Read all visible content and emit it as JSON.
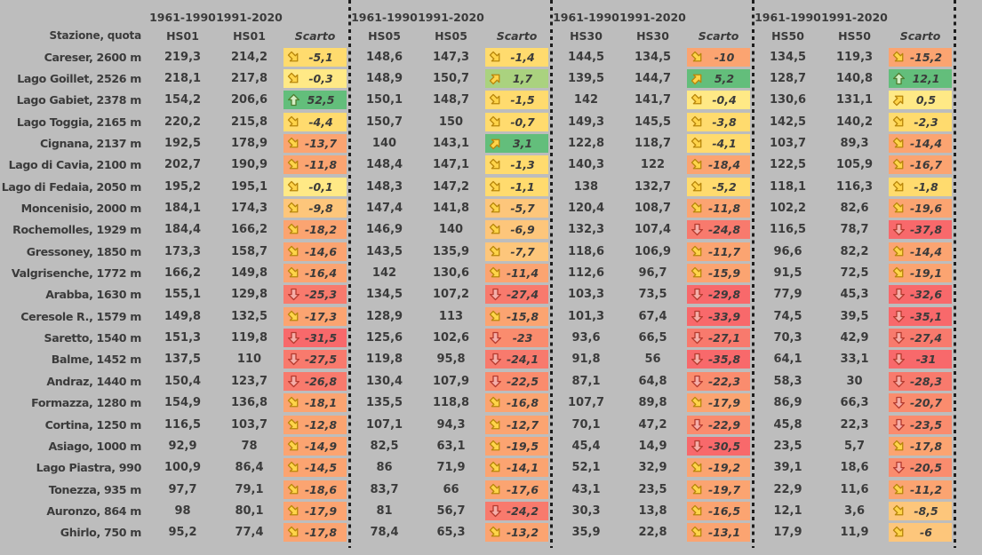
{
  "colors": {
    "page_background": "#BDBDBD",
    "text": "#3B3B3B",
    "separator": "#1D1D1D",
    "scarto_green_strong": "#63BE7B",
    "scarto_green_light": "#AAD27F",
    "scarto_yellow_light": "#FFE986",
    "scarto_yellow": "#FFDB6E",
    "scarto_yellow_orange": "#FDC67B",
    "scarto_orange": "#FBA471",
    "scarto_salmon": "#FA8C6E",
    "scarto_red_salmon": "#F87A6D",
    "scarto_red": "#F8696B",
    "arrow_yellow": "#FFD44A",
    "arrow_green": "#D6EEC5",
    "arrow_red": "#F5AEA8"
  },
  "scarto_rules": {
    "icons": [
      {
        "min": 10,
        "icon": "up-arrow",
        "style": "green"
      },
      {
        "min": 0,
        "icon": "diagonal-up-arrow",
        "style": "yellow"
      },
      {
        "min": -19.99,
        "icon": "diagonal-down-arrow",
        "style": "yellow"
      },
      {
        "min": -999,
        "icon": "down-arrow",
        "style": "red"
      }
    ],
    "fills": [
      {
        "min": 2.9,
        "color": "#63BE7B"
      },
      {
        "min": 0.9,
        "color": "#AAD27F"
      },
      {
        "min": -0.55,
        "color": "#FFE986"
      },
      {
        "min": -5.45,
        "color": "#FFDB6E"
      },
      {
        "min": -9.9,
        "color": "#FDC67B"
      },
      {
        "min": -20.05,
        "color": "#FBA471"
      },
      {
        "min": -24.05,
        "color": "#FA8C6E"
      },
      {
        "min": -28.9,
        "color": "#F87A6D"
      },
      {
        "min": -999,
        "color": "#F8696B"
      }
    ]
  },
  "chart_data": {
    "type": "table",
    "station_header": "Stazione, quota",
    "period_labels": [
      "1961-1990",
      "1991-2020"
    ],
    "metrics": [
      "HS01",
      "HS05",
      "HS30",
      "HS50"
    ],
    "scarto_label": "Scarto",
    "column_structure": "per metric group: [value 1961-1990, value 1991-2020, scarto]",
    "rows": [
      {
        "station": "Careser, 2600 m",
        "HS01": [
          219.3,
          214.2,
          -5.1
        ],
        "HS05": [
          148.6,
          147.3,
          -1.4
        ],
        "HS30": [
          144.5,
          134.5,
          -10
        ],
        "HS50": [
          134.5,
          119.3,
          -15.2
        ]
      },
      {
        "station": "Lago Goillet, 2526 m",
        "HS01": [
          218.1,
          217.8,
          -0.3
        ],
        "HS05": [
          148.9,
          150.7,
          1.7
        ],
        "HS30": [
          139.5,
          144.7,
          5.2
        ],
        "HS50": [
          128.7,
          140.8,
          12.1
        ]
      },
      {
        "station": "Lago Gabiet, 2378 m",
        "HS01": [
          154.2,
          206.6,
          52.5
        ],
        "HS05": [
          150.1,
          148.7,
          -1.5
        ],
        "HS30": [
          142,
          141.7,
          -0.4
        ],
        "HS50": [
          130.6,
          131.1,
          0.5
        ]
      },
      {
        "station": "Lago Toggia, 2165 m",
        "HS01": [
          220.2,
          215.8,
          -4.4
        ],
        "HS05": [
          150.7,
          150,
          -0.7
        ],
        "HS30": [
          149.3,
          145.5,
          -3.8
        ],
        "HS50": [
          142.5,
          140.2,
          -2.3
        ]
      },
      {
        "station": "Cignana, 2137 m",
        "HS01": [
          192.5,
          178.9,
          -13.7
        ],
        "HS05": [
          140,
          143.1,
          3.1
        ],
        "HS30": [
          122.8,
          118.7,
          -4.1
        ],
        "HS50": [
          103.7,
          89.3,
          -14.4
        ]
      },
      {
        "station": "Lago di Cavia, 2100 m",
        "HS01": [
          202.7,
          190.9,
          -11.8
        ],
        "HS05": [
          148.4,
          147.1,
          -1.3
        ],
        "HS30": [
          140.3,
          122,
          -18.4
        ],
        "HS50": [
          122.5,
          105.9,
          -16.7
        ]
      },
      {
        "station": "Lago di Fedaia, 2050 m",
        "HS01": [
          195.2,
          195.1,
          -0.1
        ],
        "HS05": [
          148.3,
          147.2,
          -1.1
        ],
        "HS30": [
          138,
          132.7,
          -5.2
        ],
        "HS50": [
          118.1,
          116.3,
          -1.8
        ]
      },
      {
        "station": "Moncenisio, 2000 m",
        "HS01": [
          184.1,
          174.3,
          -9.8
        ],
        "HS05": [
          147.4,
          141.8,
          -5.7
        ],
        "HS30": [
          120.4,
          108.7,
          -11.8
        ],
        "HS50": [
          102.2,
          82.6,
          -19.6
        ]
      },
      {
        "station": "Rochemolles, 1929 m",
        "HS01": [
          184.4,
          166.2,
          -18.2
        ],
        "HS05": [
          146.9,
          140,
          -6.9
        ],
        "HS30": [
          132.3,
          107.4,
          -24.8
        ],
        "HS50": [
          116.5,
          78.7,
          -37.8
        ]
      },
      {
        "station": "Gressoney, 1850 m",
        "HS01": [
          173.3,
          158.7,
          -14.6
        ],
        "HS05": [
          143.5,
          135.9,
          -7.7
        ],
        "HS30": [
          118.6,
          106.9,
          -11.7
        ],
        "HS50": [
          96.6,
          82.2,
          -14.4
        ]
      },
      {
        "station": "Valgrisenche, 1772 m",
        "HS01": [
          166.2,
          149.8,
          -16.4
        ],
        "HS05": [
          142,
          130.6,
          -11.4
        ],
        "HS30": [
          112.6,
          96.7,
          -15.9
        ],
        "HS50": [
          91.5,
          72.5,
          -19.1
        ]
      },
      {
        "station": "Arabba, 1630 m",
        "HS01": [
          155.1,
          129.8,
          -25.3
        ],
        "HS05": [
          134.5,
          107.2,
          -27.4
        ],
        "HS30": [
          103.3,
          73.5,
          -29.8
        ],
        "HS50": [
          77.9,
          45.3,
          -32.6
        ]
      },
      {
        "station": "Ceresole R., 1579 m",
        "HS01": [
          149.8,
          132.5,
          -17.3
        ],
        "HS05": [
          128.9,
          113,
          -15.8
        ],
        "HS30": [
          101.3,
          67.4,
          -33.9
        ],
        "HS50": [
          74.5,
          39.5,
          -35.1
        ]
      },
      {
        "station": "Saretto, 1540 m",
        "HS01": [
          151.3,
          119.8,
          -31.5
        ],
        "HS05": [
          125.6,
          102.6,
          -23
        ],
        "HS30": [
          93.6,
          66.5,
          -27.1
        ],
        "HS50": [
          70.3,
          42.9,
          -27.4
        ]
      },
      {
        "station": "Balme, 1452 m",
        "HS01": [
          137.5,
          110,
          -27.5
        ],
        "HS05": [
          119.8,
          95.8,
          -24.1
        ],
        "HS30": [
          91.8,
          56,
          -35.8
        ],
        "HS50": [
          64.1,
          33.1,
          -31
        ]
      },
      {
        "station": "Andraz, 1440 m",
        "HS01": [
          150.4,
          123.7,
          -26.8
        ],
        "HS05": [
          130.4,
          107.9,
          -22.5
        ],
        "HS30": [
          87.1,
          64.8,
          -22.3
        ],
        "HS50": [
          58.3,
          30,
          -28.3
        ]
      },
      {
        "station": "Formazza, 1280 m",
        "HS01": [
          154.9,
          136.8,
          -18.1
        ],
        "HS05": [
          135.5,
          118.8,
          -16.8
        ],
        "HS30": [
          107.7,
          89.8,
          -17.9
        ],
        "HS50": [
          86.9,
          66.3,
          -20.7
        ]
      },
      {
        "station": "Cortina, 1250 m",
        "HS01": [
          116.5,
          103.7,
          -12.8
        ],
        "HS05": [
          107.1,
          94.3,
          -12.7
        ],
        "HS30": [
          70.1,
          47.2,
          -22.9
        ],
        "HS50": [
          45.8,
          22.3,
          -23.5
        ]
      },
      {
        "station": "Asiago, 1000 m",
        "HS01": [
          92.9,
          78,
          -14.9
        ],
        "HS05": [
          82.5,
          63.1,
          -19.5
        ],
        "HS30": [
          45.4,
          14.9,
          -30.5
        ],
        "HS50": [
          23.5,
          5.7,
          -17.8
        ]
      },
      {
        "station": "Lago Piastra, 990",
        "HS01": [
          100.9,
          86.4,
          -14.5
        ],
        "HS05": [
          86,
          71.9,
          -14.1
        ],
        "HS30": [
          52.1,
          32.9,
          -19.2
        ],
        "HS50": [
          39.1,
          18.6,
          -20.5
        ]
      },
      {
        "station": "Tonezza, 935 m",
        "HS01": [
          97.7,
          79.1,
          -18.6
        ],
        "HS05": [
          83.7,
          66,
          -17.6
        ],
        "HS30": [
          43.1,
          23.5,
          -19.7
        ],
        "HS50": [
          22.9,
          11.6,
          -11.2
        ]
      },
      {
        "station": "Auronzo, 864 m",
        "HS01": [
          98,
          80.1,
          -17.9
        ],
        "HS05": [
          81,
          56.7,
          -24.2
        ],
        "HS30": [
          30.3,
          13.8,
          -16.5
        ],
        "HS50": [
          12.1,
          3.6,
          -8.5
        ]
      },
      {
        "station": "Ghirlo, 750 m",
        "HS01": [
          95.2,
          77.4,
          -17.8
        ],
        "HS05": [
          78.4,
          65.3,
          -13.2
        ],
        "HS30": [
          35.9,
          22.8,
          -13.1
        ],
        "HS50": [
          17.9,
          11.9,
          -6
        ]
      }
    ]
  }
}
